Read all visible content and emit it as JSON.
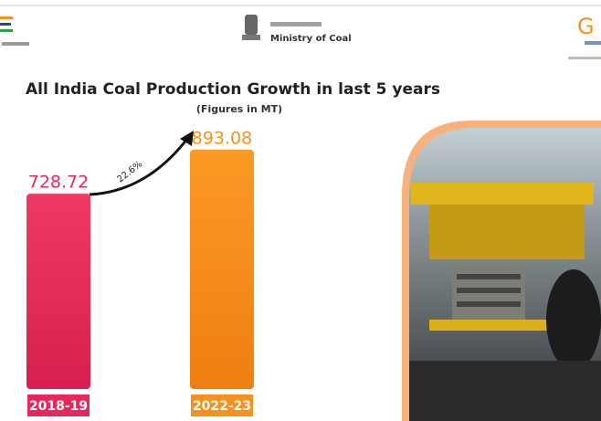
{
  "header": {
    "ministry": "Ministry of Coal"
  },
  "chart_data": {
    "type": "bar",
    "title": "All India Coal Production Growth in last 5 years",
    "subtitle": "(Figures in MT)",
    "annotation": "22.6%",
    "categories": [
      "2018-19",
      "2022-23"
    ],
    "values": [
      728.72,
      893.08
    ],
    "colors": [
      "#e8285a",
      "#f7901e"
    ]
  }
}
